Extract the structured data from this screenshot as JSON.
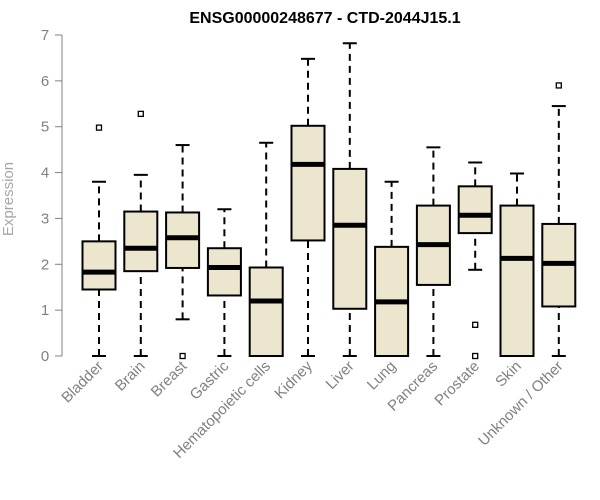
{
  "chart_data": {
    "type": "box",
    "title": "ENSG00000248677 - CTD-2044J15.1",
    "ylabel": "Expression",
    "xlabel": "",
    "ylim": [
      0,
      7
    ],
    "yticks": [
      0,
      1,
      2,
      3,
      4,
      5,
      6,
      7
    ],
    "box_fill": "#ede6ce",
    "categories": [
      "Bladder",
      "Brain",
      "Breast",
      "Gastric",
      "Hematopoietic cells",
      "Kidney",
      "Liver",
      "Lung",
      "Pancreas",
      "Prostate",
      "Skin",
      "Unknown / Other"
    ],
    "boxes": [
      {
        "min": 0.0,
        "q1": 1.45,
        "median": 1.83,
        "q3": 2.5,
        "max": 3.8,
        "outliers": [
          4.98
        ]
      },
      {
        "min": 0.0,
        "q1": 1.85,
        "median": 2.35,
        "q3": 3.15,
        "max": 3.95,
        "outliers": [
          5.28
        ]
      },
      {
        "min": 0.8,
        "q1": 1.92,
        "median": 2.58,
        "q3": 3.13,
        "max": 4.6,
        "outliers": [
          0.0
        ]
      },
      {
        "min": 0.0,
        "q1": 1.32,
        "median": 1.93,
        "q3": 2.35,
        "max": 3.2,
        "outliers": []
      },
      {
        "min": 0.0,
        "q1": 0.0,
        "median": 1.2,
        "q3": 1.93,
        "max": 4.65,
        "outliers": []
      },
      {
        "min": 0.0,
        "q1": 2.52,
        "median": 4.18,
        "q3": 5.02,
        "max": 6.48,
        "outliers": []
      },
      {
        "min": 0.0,
        "q1": 1.03,
        "median": 2.85,
        "q3": 4.08,
        "max": 6.82,
        "outliers": []
      },
      {
        "min": 0.0,
        "q1": 0.0,
        "median": 1.18,
        "q3": 2.38,
        "max": 3.8,
        "outliers": []
      },
      {
        "min": 0.0,
        "q1": 1.55,
        "median": 2.43,
        "q3": 3.28,
        "max": 4.55,
        "outliers": []
      },
      {
        "min": 1.88,
        "q1": 2.68,
        "median": 3.07,
        "q3": 3.7,
        "max": 4.22,
        "outliers": [
          0.68,
          0.0
        ]
      },
      {
        "min": 0.0,
        "q1": 0.0,
        "median": 2.13,
        "q3": 3.28,
        "max": 3.98,
        "outliers": []
      },
      {
        "min": 0.0,
        "q1": 1.08,
        "median": 2.02,
        "q3": 2.88,
        "max": 5.45,
        "outliers": [
          5.9
        ]
      }
    ]
  }
}
